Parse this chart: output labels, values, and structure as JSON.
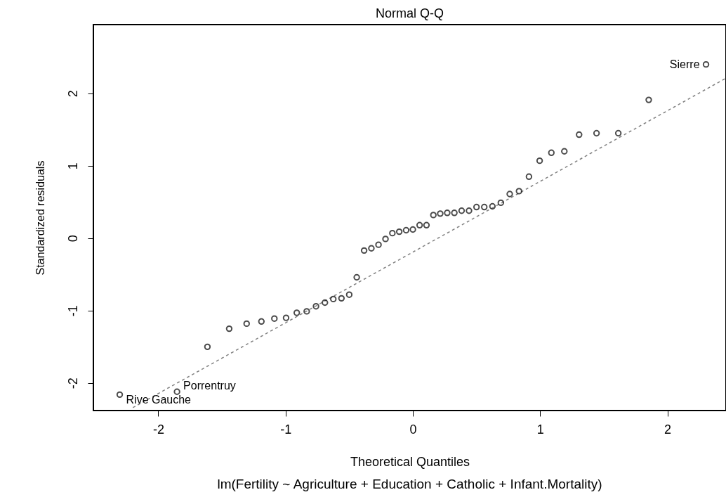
{
  "chart_data": {
    "type": "scatter",
    "title": "Normal Q-Q",
    "xlabel": "Theoretical Quantiles",
    "ylabel": "Standardized residuals",
    "annotations": [
      {
        "text": "Rive Gauche",
        "x": -2.303,
        "y": -2.16
      },
      {
        "text": "Porrentruy",
        "x": -1.853,
        "y": -2.12
      },
      {
        "text": "Sierre",
        "x": 2.303,
        "y": 2.4
      },
      "lm(Fertility ~ Agriculture + Education + Catholic + Infant.Mortality)"
    ],
    "xlim": [
      -2.51,
      2.46
    ],
    "ylim": [
      -2.38,
      2.95
    ],
    "xticks": [
      -2,
      -1,
      0,
      1,
      2
    ],
    "yticks": [
      -2,
      -1,
      0,
      1,
      2
    ],
    "grid": false,
    "series": [
      {
        "color": "#000000",
        "marker": "circle",
        "x": [
          -2.303,
          -1.853,
          -1.614,
          -1.443,
          -1.306,
          -1.19,
          -1.088,
          -0.996,
          -0.912,
          -0.834,
          -0.761,
          -0.691,
          -0.625,
          -0.561,
          -0.5,
          -0.441,
          -0.383,
          -0.326,
          -0.27,
          -0.215,
          -0.161,
          -0.107,
          -0.053,
          0,
          0.053,
          0.107,
          0.161,
          0.215,
          0.27,
          0.326,
          0.383,
          0.441,
          0.5,
          0.561,
          0.625,
          0.691,
          0.761,
          0.834,
          0.912,
          0.996,
          1.088,
          1.19,
          1.306,
          1.443,
          1.614,
          1.853,
          2.303
        ],
        "values": [
          -2.16,
          -2.12,
          -1.5,
          -1.25,
          -1.18,
          -1.15,
          -1.11,
          -1.1,
          -1.03,
          -1.01,
          -0.94,
          -0.89,
          -0.84,
          -0.83,
          -0.78,
          -0.54,
          -0.17,
          -0.14,
          -0.09,
          -0.01,
          0.07,
          0.09,
          0.11,
          0.12,
          0.18,
          0.18,
          0.32,
          0.34,
          0.35,
          0.35,
          0.38,
          0.38,
          0.43,
          0.43,
          0.44,
          0.49,
          0.61,
          0.65,
          0.85,
          1.07,
          1.18,
          1.2,
          1.43,
          1.45,
          1.45,
          1.91,
          2.4
        ]
      },
      {
        "type": "line",
        "color": "#808080",
        "line_style": "dashed",
        "marker": "none",
        "x": [
          -2.2,
          2.46
        ],
        "values": [
          -2.34,
          2.21
        ]
      }
    ]
  }
}
